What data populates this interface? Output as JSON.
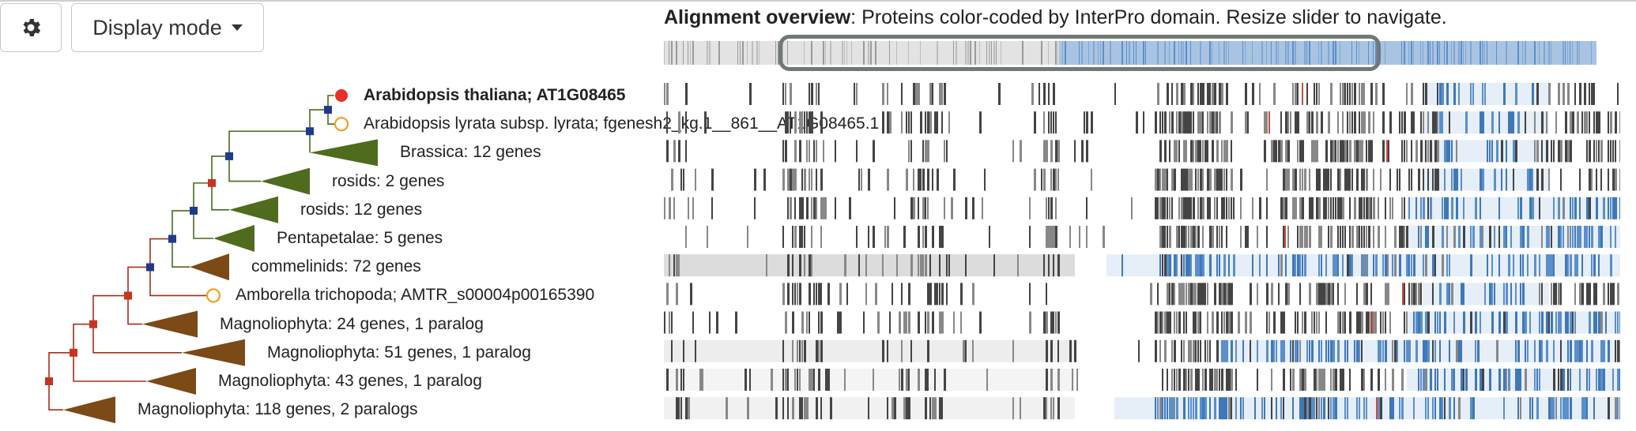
{
  "toolbar": {
    "settings_icon": "gear-icon",
    "display_mode_label": "Display mode"
  },
  "overview": {
    "title_bold": "Alignment overview",
    "title_rest": ": Proteins color-coded by InterPro domain. Resize slider to navigate."
  },
  "colors": {
    "branch_green": "#4a6b1a",
    "branch_red": "#a4311e",
    "clade_green": "#4f6b1e",
    "clade_brown": "#7b4a16",
    "node_blue": "#1f3a8a",
    "node_red": "#c8341f",
    "leaf_query": "#e8312a",
    "leaf_ortholog": "#f0a025",
    "domain_blue": "#5b8fc9",
    "domain_bg": "#e6eef7",
    "gap_grey": "#cfcfcf",
    "residue_dark": "#444444"
  },
  "tree": {
    "rows": [
      {
        "label": "Arabidopsis thaliana; AT1G08465",
        "kind": "leaf-query",
        "bold": true
      },
      {
        "label": "Arabidopsis lyrata subsp. lyrata; fgenesh2_kg.1__861__AT1G08465.1",
        "kind": "leaf"
      },
      {
        "label": "Brassica: 12 genes",
        "kind": "clade-green"
      },
      {
        "label": "rosids: 2 genes",
        "kind": "clade-green"
      },
      {
        "label": "rosids: 12 genes",
        "kind": "clade-green"
      },
      {
        "label": "Pentapetalae: 5 genes",
        "kind": "clade-green"
      },
      {
        "label": "commelinids: 72 genes",
        "kind": "clade-brown"
      },
      {
        "label": "Amborella trichopoda; AMTR_s00004p00165390",
        "kind": "leaf"
      },
      {
        "label": "Magnoliophyta: 24 genes, 1 paralog",
        "kind": "clade-brown"
      },
      {
        "label": "Magnoliophyta: 51 genes, 1 paralog",
        "kind": "clade-brown"
      },
      {
        "label": "Magnoliophyta: 43 genes, 1 paralog",
        "kind": "clade-brown"
      },
      {
        "label": "Magnoliophyta: 118 genes, 2 paralogs",
        "kind": "clade-brown"
      }
    ]
  }
}
